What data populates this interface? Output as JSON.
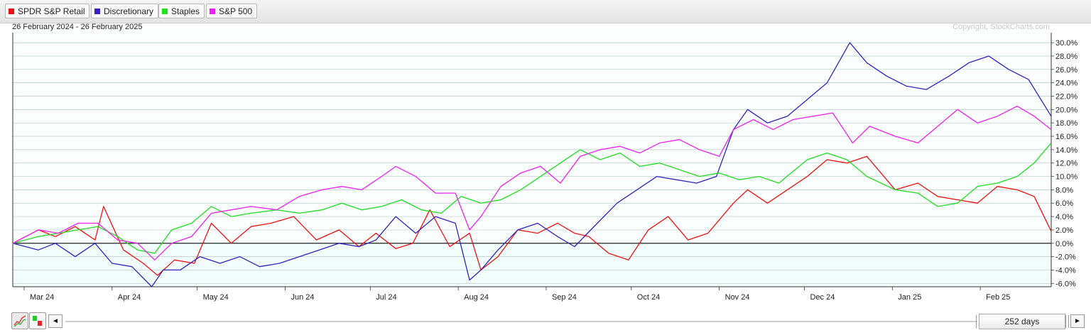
{
  "legend": [
    {
      "label": "SPDR S&P Retail",
      "color": "#ee1111"
    },
    {
      "label": "Discretionary",
      "color": "#3322bb"
    },
    {
      "label": "Staples",
      "color": "#22dd22"
    },
    {
      "label": "S&P 500",
      "color": "#ee22ee"
    }
  ],
  "header": {
    "date_range": "26 February 2024 - 26 February 2025",
    "copyright": "Copyright, StockCharts.com"
  },
  "toolbar": {
    "prev_arrow": "◄",
    "next_arrow": "►",
    "days_label": "252 days"
  },
  "chart_data": {
    "type": "line",
    "x_tick_labels": [
      "Mar 24",
      "Apr 24",
      "May 24",
      "Jun 24",
      "Jul 24",
      "Aug 24",
      "Sep 24",
      "Oct 24",
      "Nov 24",
      "Dec 24",
      "Jan 25",
      "Feb 25"
    ],
    "y_tick_labels": [
      "30.0%",
      "28.0%",
      "26.0%",
      "24.0%",
      "22.0%",
      "20.0%",
      "18.0%",
      "16.0%",
      "14.0%",
      "12.0%",
      "10.0%",
      "8.0%",
      "6.0%",
      "4.0%",
      "2.0%",
      "0.0%",
      "-2.0%",
      "-4.0%",
      "-6.0%"
    ],
    "ylim": [
      -6.5,
      31.5
    ],
    "y_unit": "%",
    "grid": true,
    "legend_position": "top-left",
    "x_domain": [
      "2024-02-26",
      "2025-02-26"
    ],
    "x_ticks_dates": [
      "2024-03-01",
      "2024-04-01",
      "2024-05-01",
      "2024-06-01",
      "2024-07-01",
      "2024-08-01",
      "2024-09-01",
      "2024-10-01",
      "2024-11-01",
      "2024-12-01",
      "2025-01-01",
      "2025-02-01"
    ],
    "series": [
      {
        "name": "SPDR S&P Retail",
        "color": "#ee1111",
        "x": [
          "2024-02-26",
          "2024-03-06",
          "2024-03-12",
          "2024-03-19",
          "2024-03-26",
          "2024-03-29",
          "2024-04-05",
          "2024-04-12",
          "2024-04-17",
          "2024-04-23",
          "2024-04-30",
          "2024-05-06",
          "2024-05-13",
          "2024-05-20",
          "2024-05-27",
          "2024-06-04",
          "2024-06-12",
          "2024-06-20",
          "2024-06-27",
          "2024-07-03",
          "2024-07-10",
          "2024-07-16",
          "2024-07-22",
          "2024-07-29",
          "2024-08-05",
          "2024-08-09",
          "2024-08-15",
          "2024-08-22",
          "2024-08-29",
          "2024-09-05",
          "2024-09-11",
          "2024-09-16",
          "2024-09-23",
          "2024-09-30",
          "2024-10-07",
          "2024-10-14",
          "2024-10-21",
          "2024-10-28",
          "2024-11-06",
          "2024-11-11",
          "2024-11-18",
          "2024-11-25",
          "2024-12-02",
          "2024-12-09",
          "2024-12-16",
          "2024-12-23",
          "2025-01-02",
          "2025-01-10",
          "2025-01-17",
          "2025-01-24",
          "2025-01-31",
          "2025-02-07",
          "2025-02-14",
          "2025-02-20",
          "2025-02-26"
        ],
        "values": [
          0.0,
          2.0,
          1.0,
          2.5,
          0.5,
          5.5,
          -1.0,
          -3.0,
          -4.8,
          -2.5,
          -3.0,
          3.0,
          0.0,
          2.5,
          3.0,
          4.0,
          0.5,
          2.0,
          -0.5,
          1.5,
          -0.8,
          0.0,
          5.0,
          -0.5,
          1.5,
          -4.0,
          -2.0,
          2.0,
          1.5,
          3.0,
          1.5,
          1.0,
          -1.5,
          -2.5,
          2.0,
          4.0,
          0.5,
          1.5,
          6.0,
          8.0,
          6.0,
          8.0,
          10.0,
          12.5,
          12.0,
          13.0,
          8.0,
          9.0,
          7.0,
          6.5,
          6.0,
          8.5,
          8.0,
          7.0,
          1.8
        ]
      },
      {
        "name": "Discretionary",
        "color": "#3322bb",
        "x": [
          "2024-02-26",
          "2024-03-06",
          "2024-03-12",
          "2024-03-19",
          "2024-03-26",
          "2024-04-01",
          "2024-04-08",
          "2024-04-15",
          "2024-04-19",
          "2024-04-25",
          "2024-05-02",
          "2024-05-09",
          "2024-05-16",
          "2024-05-23",
          "2024-05-30",
          "2024-06-06",
          "2024-06-13",
          "2024-06-20",
          "2024-06-27",
          "2024-07-03",
          "2024-07-10",
          "2024-07-17",
          "2024-07-24",
          "2024-07-31",
          "2024-08-05",
          "2024-08-09",
          "2024-08-15",
          "2024-08-22",
          "2024-08-29",
          "2024-09-05",
          "2024-09-11",
          "2024-09-19",
          "2024-09-26",
          "2024-10-03",
          "2024-10-10",
          "2024-10-17",
          "2024-10-24",
          "2024-10-31",
          "2024-11-06",
          "2024-11-11",
          "2024-11-18",
          "2024-11-25",
          "2024-12-02",
          "2024-12-09",
          "2024-12-13",
          "2024-12-17",
          "2024-12-23",
          "2024-12-30",
          "2025-01-06",
          "2025-01-13",
          "2025-01-21",
          "2025-01-28",
          "2025-02-04",
          "2025-02-11",
          "2025-02-18",
          "2025-02-26"
        ],
        "values": [
          0.0,
          -1.0,
          0.0,
          -2.0,
          0.0,
          -3.0,
          -3.5,
          -6.5,
          -4.0,
          -4.0,
          -2.0,
          -3.0,
          -2.0,
          -3.5,
          -3.0,
          -2.0,
          -1.0,
          0.0,
          -0.5,
          0.5,
          4.0,
          1.5,
          4.0,
          3.0,
          -5.5,
          -4.0,
          -1.0,
          2.0,
          3.0,
          1.0,
          -0.5,
          3.0,
          6.0,
          8.0,
          10.0,
          9.5,
          9.0,
          10.0,
          17.0,
          20.0,
          18.0,
          19.0,
          21.5,
          24.0,
          27.0,
          30.0,
          27.0,
          25.0,
          23.5,
          23.0,
          25.0,
          27.0,
          28.0,
          26.0,
          24.5,
          19.0
        ]
      },
      {
        "name": "Staples",
        "color": "#22dd22",
        "x": [
          "2024-02-26",
          "2024-03-06",
          "2024-03-13",
          "2024-03-20",
          "2024-03-27",
          "2024-04-03",
          "2024-04-10",
          "2024-04-16",
          "2024-04-22",
          "2024-04-29",
          "2024-05-06",
          "2024-05-13",
          "2024-05-20",
          "2024-05-29",
          "2024-06-06",
          "2024-06-14",
          "2024-06-21",
          "2024-06-28",
          "2024-07-05",
          "2024-07-12",
          "2024-07-19",
          "2024-07-26",
          "2024-08-02",
          "2024-08-09",
          "2024-08-16",
          "2024-08-23",
          "2024-08-30",
          "2024-09-06",
          "2024-09-13",
          "2024-09-20",
          "2024-09-27",
          "2024-10-04",
          "2024-10-11",
          "2024-10-18",
          "2024-10-25",
          "2024-11-01",
          "2024-11-08",
          "2024-11-15",
          "2024-11-22",
          "2024-12-02",
          "2024-12-09",
          "2024-12-16",
          "2024-12-23",
          "2025-01-02",
          "2025-01-10",
          "2025-01-17",
          "2025-01-24",
          "2025-01-31",
          "2025-02-07",
          "2025-02-14",
          "2025-02-20",
          "2025-02-26"
        ],
        "values": [
          0.0,
          1.0,
          1.5,
          2.0,
          2.5,
          1.0,
          -1.0,
          -1.5,
          2.0,
          3.0,
          5.5,
          4.0,
          4.5,
          5.0,
          4.5,
          5.0,
          6.0,
          5.0,
          5.5,
          6.5,
          5.0,
          4.5,
          7.0,
          6.0,
          6.5,
          8.0,
          10.0,
          12.0,
          14.0,
          12.5,
          13.5,
          11.5,
          12.0,
          11.0,
          10.0,
          10.5,
          9.5,
          10.0,
          9.0,
          12.5,
          13.5,
          12.5,
          10.0,
          8.0,
          7.5,
          5.5,
          6.0,
          8.5,
          9.0,
          10.0,
          12.0,
          15.0
        ]
      },
      {
        "name": "S&P 500",
        "color": "#ee22ee",
        "x": [
          "2024-02-26",
          "2024-03-06",
          "2024-03-13",
          "2024-03-20",
          "2024-03-27",
          "2024-04-03",
          "2024-04-10",
          "2024-04-16",
          "2024-04-22",
          "2024-04-29",
          "2024-05-06",
          "2024-05-13",
          "2024-05-20",
          "2024-05-29",
          "2024-06-06",
          "2024-06-14",
          "2024-06-21",
          "2024-06-28",
          "2024-07-05",
          "2024-07-10",
          "2024-07-17",
          "2024-07-24",
          "2024-07-31",
          "2024-08-05",
          "2024-08-09",
          "2024-08-16",
          "2024-08-23",
          "2024-08-30",
          "2024-09-06",
          "2024-09-13",
          "2024-09-20",
          "2024-09-27",
          "2024-10-04",
          "2024-10-11",
          "2024-10-18",
          "2024-10-25",
          "2024-11-01",
          "2024-11-06",
          "2024-11-13",
          "2024-11-20",
          "2024-11-27",
          "2024-12-04",
          "2024-12-11",
          "2024-12-18",
          "2024-12-24",
          "2025-01-02",
          "2025-01-10",
          "2025-01-17",
          "2025-01-24",
          "2025-01-31",
          "2025-02-07",
          "2025-02-14",
          "2025-02-20",
          "2025-02-26"
        ],
        "values": [
          0.0,
          2.0,
          1.5,
          3.0,
          3.0,
          0.5,
          0.0,
          -2.5,
          0.0,
          1.0,
          4.5,
          5.0,
          5.5,
          5.0,
          7.0,
          8.0,
          8.5,
          8.0,
          10.0,
          11.5,
          10.0,
          7.5,
          7.5,
          2.0,
          4.0,
          8.5,
          10.5,
          11.5,
          9.0,
          13.0,
          14.0,
          14.5,
          13.5,
          15.0,
          15.5,
          14.0,
          13.0,
          17.0,
          18.5,
          17.0,
          18.5,
          19.0,
          19.5,
          15.0,
          17.5,
          16.0,
          15.0,
          17.5,
          20.0,
          18.0,
          19.0,
          20.5,
          19.0,
          17.0
        ]
      }
    ]
  }
}
